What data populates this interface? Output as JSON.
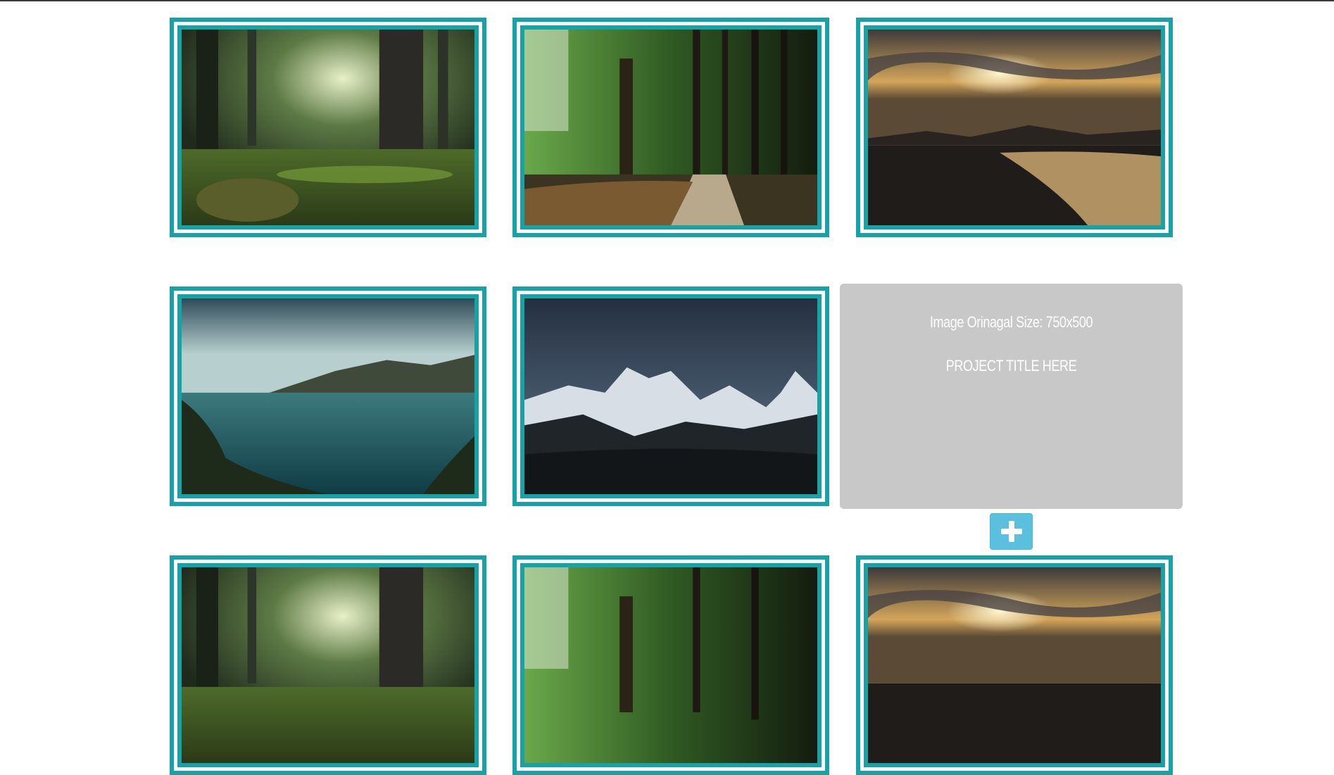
{
  "overlay": {
    "size_text": "Image Orinagal Size: 750x500",
    "title_text": "PROJECT TITLE HERE"
  },
  "add_button": {
    "icon": "plus-icon"
  },
  "tiles": [
    {
      "scene": "forest-clearing-icon"
    },
    {
      "scene": "forest-path-icon"
    },
    {
      "scene": "beach-sunset-icon"
    },
    {
      "scene": "mountain-lake-icon"
    },
    {
      "scene": "snowy-mountains-night-icon"
    },
    {
      "scene": "forest-clearing-icon"
    },
    {
      "scene": "forest-path-icon"
    },
    {
      "scene": "beach-sunset-icon"
    }
  ],
  "colors": {
    "frame": "#17a2a6",
    "overlay_bg": "#c8c8c8",
    "button_bg": "#5bc0de"
  }
}
